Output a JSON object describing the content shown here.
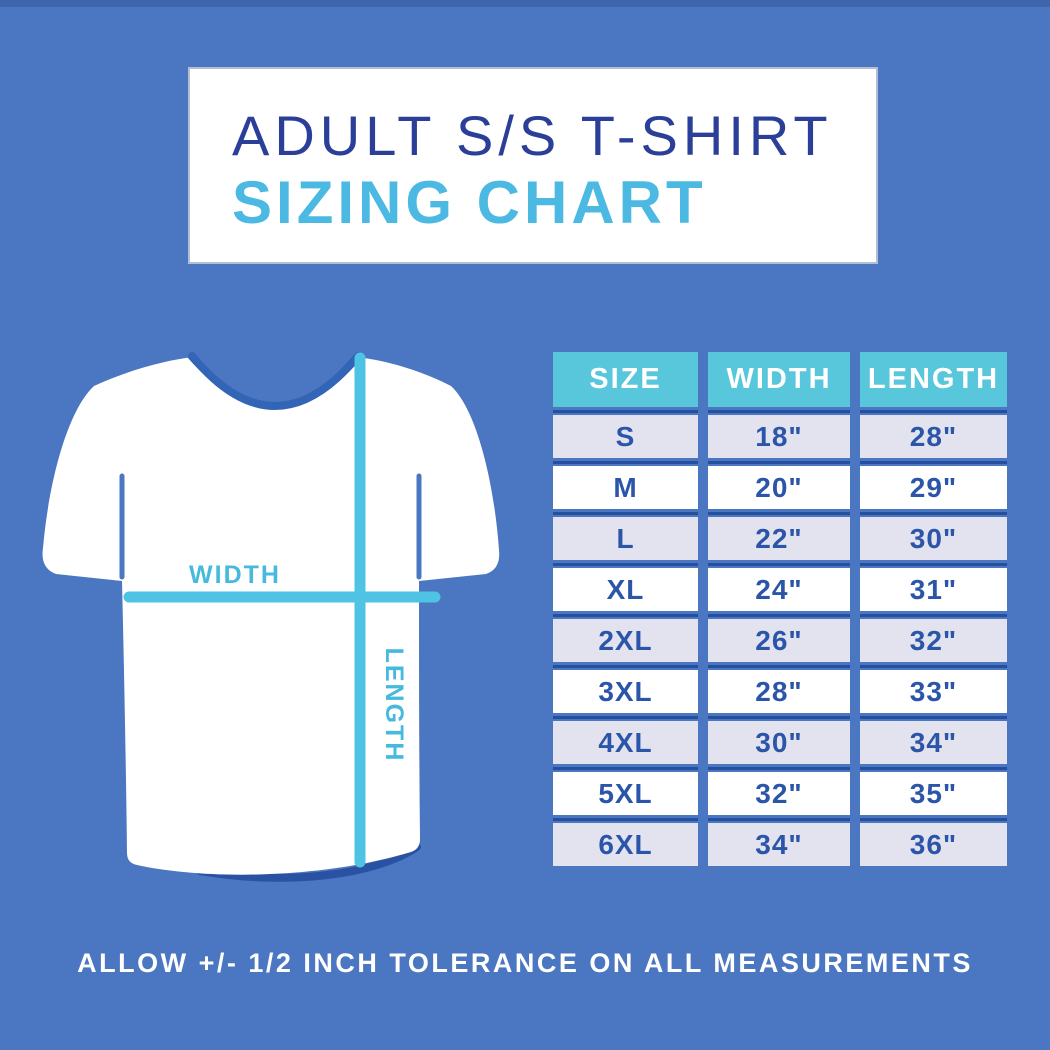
{
  "header": {
    "title_line1": "ADULT S/S T-SHIRT",
    "title_line2": "SIZING CHART"
  },
  "diagram": {
    "illustration": "tshirt-with-measurement-lines",
    "width_label": "WIDTH",
    "length_label": "LENGTH"
  },
  "size_table": {
    "columns": [
      "SIZE",
      "WIDTH",
      "LENGTH"
    ],
    "rows": [
      [
        "S",
        "18\"",
        "28\""
      ],
      [
        "M",
        "20\"",
        "29\""
      ],
      [
        "L",
        "22\"",
        "30\""
      ],
      [
        "XL",
        "24\"",
        "31\""
      ],
      [
        "2XL",
        "26\"",
        "32\""
      ],
      [
        "3XL",
        "28\"",
        "33\""
      ],
      [
        "4XL",
        "30\"",
        "34\""
      ],
      [
        "5XL",
        "32\"",
        "35\""
      ],
      [
        "6XL",
        "34\"",
        "36\""
      ]
    ]
  },
  "footer": {
    "note": "ALLOW +/- 1/2 INCH TOLERANCE ON ALL MEASUREMENTS"
  },
  "colors": {
    "background_blue": "#4b76c1",
    "navy": "#2b3f98",
    "table_text_navy": "#2b55a8",
    "divider_navy": "#24509f",
    "cyan_accent": "#4cb9e3",
    "cyan_line": "#4ec3e4",
    "header_cell_cyan": "#58c6db",
    "row_lavender": "#e3e3ef",
    "white": "#ffffff"
  },
  "chart_data": {
    "type": "table",
    "title": "ADULT S/S T-SHIRT SIZING CHART",
    "columns": [
      "SIZE",
      "WIDTH",
      "LENGTH"
    ],
    "units": "inches",
    "rows": [
      {
        "size": "S",
        "width_in": 18,
        "length_in": 28
      },
      {
        "size": "M",
        "width_in": 20,
        "length_in": 29
      },
      {
        "size": "L",
        "width_in": 22,
        "length_in": 30
      },
      {
        "size": "XL",
        "width_in": 24,
        "length_in": 31
      },
      {
        "size": "2XL",
        "width_in": 26,
        "length_in": 32
      },
      {
        "size": "3XL",
        "width_in": 28,
        "length_in": 33
      },
      {
        "size": "4XL",
        "width_in": 30,
        "length_in": 34
      },
      {
        "size": "5XL",
        "width_in": 32,
        "length_in": 35
      },
      {
        "size": "6XL",
        "width_in": 34,
        "length_in": 36
      }
    ],
    "note": "ALLOW +/- 1/2 INCH TOLERANCE ON ALL MEASUREMENTS"
  }
}
